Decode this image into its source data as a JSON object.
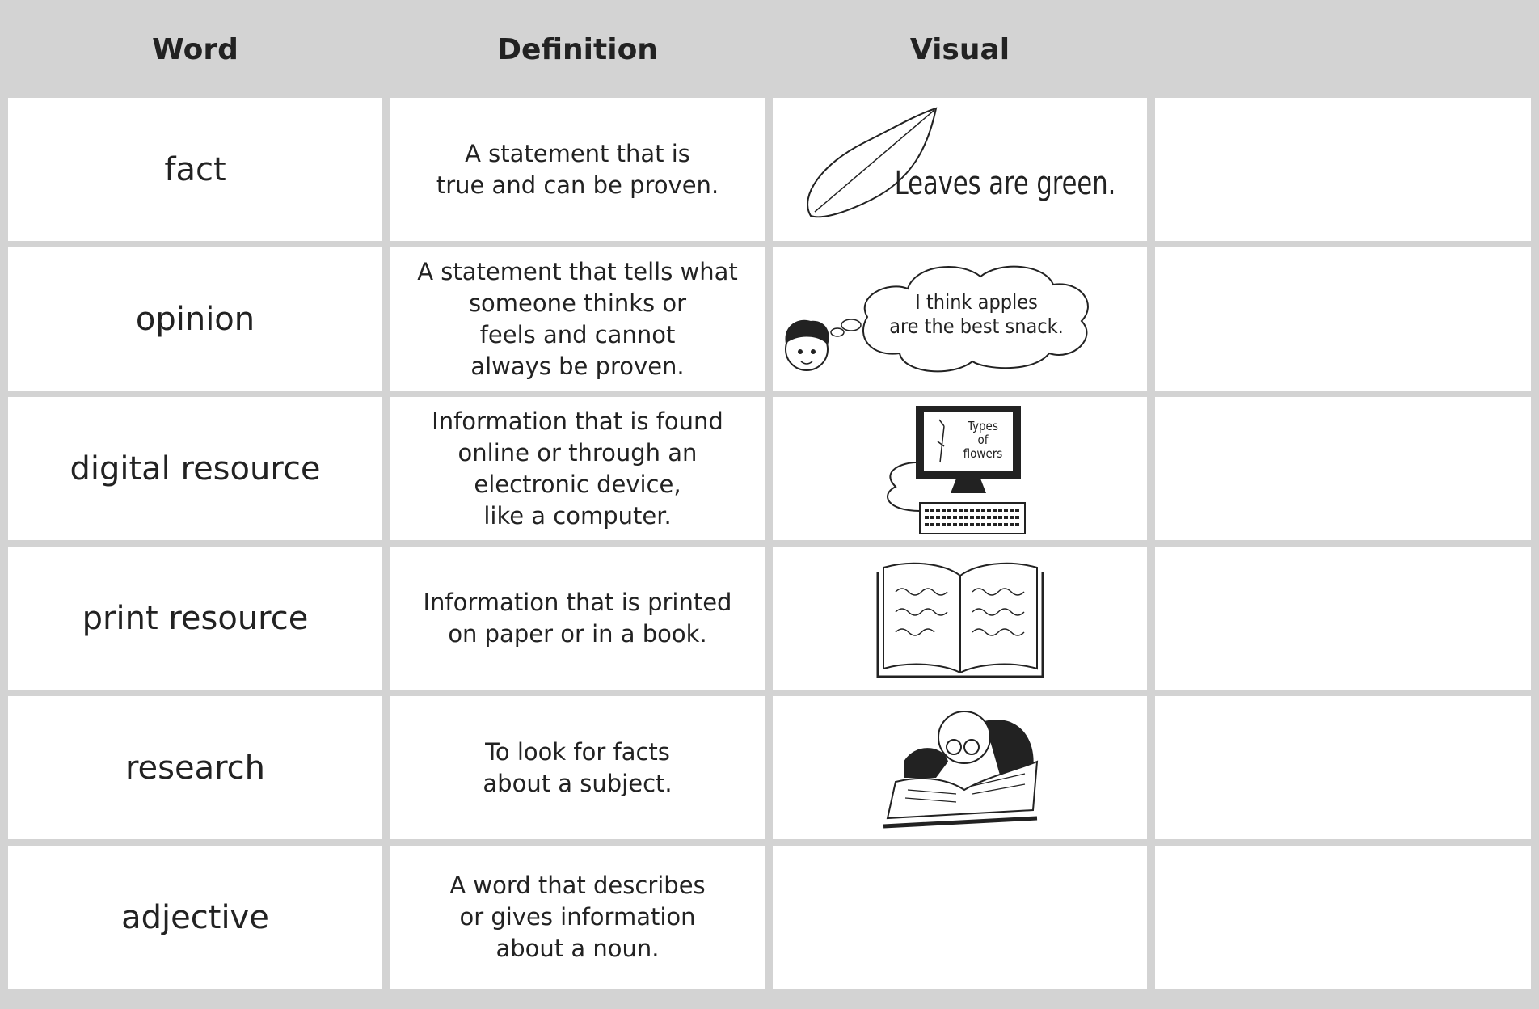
{
  "header": {
    "columns": [
      "Word",
      "Definition",
      "Visual"
    ]
  },
  "rows": [
    {
      "word": "fact",
      "definition": [
        "A statement that is",
        "true and can be proven."
      ],
      "visual": [
        "Leaves are green."
      ]
    },
    {
      "word": "opinion",
      "definition": [
        "A statement that tells what",
        "someone thinks or",
        "feels and cannot",
        "always be proven."
      ],
      "visual": [
        "I think apples",
        "are the best snack."
      ]
    },
    {
      "word": "digital resource",
      "definition": [
        "Information that is found",
        "online or through an",
        "electronic device,",
        "like a computer."
      ],
      "visual": [
        "Types",
        "of",
        "flowers"
      ]
    },
    {
      "word": "print resource",
      "definition": [
        "Information that is printed",
        "on paper or in a book."
      ]
    },
    {
      "word": "research",
      "definition": [
        "To look for facts",
        "about a subject."
      ]
    },
    {
      "word": "adjective",
      "definition": [
        "A word that describes",
        "or gives information",
        "about a noun."
      ]
    }
  ]
}
